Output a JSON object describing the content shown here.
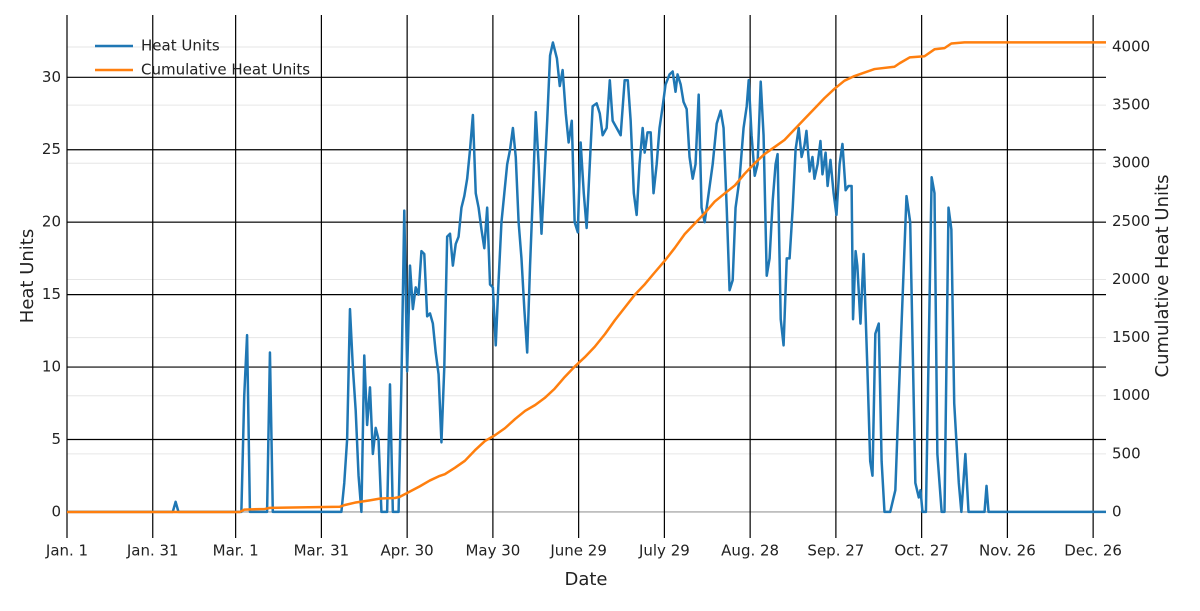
{
  "chart_data": {
    "type": "line",
    "xlabel": "Date",
    "ylabel": "Heat Units",
    "y2label": "Cumulative Heat Units",
    "xlim": [
      1,
      364.5
    ],
    "ylim": [
      -1.8,
      34.3
    ],
    "y2lim": [
      -224,
      4275
    ],
    "xticks": [
      {
        "value": 1,
        "label": "Jan. 1"
      },
      {
        "value": 31,
        "label": "Jan. 31"
      },
      {
        "value": 60,
        "label": "Mar. 1"
      },
      {
        "value": 90,
        "label": "Mar. 31"
      },
      {
        "value": 120,
        "label": "Apr. 30"
      },
      {
        "value": 150,
        "label": "May 30"
      },
      {
        "value": 180,
        "label": "June 29"
      },
      {
        "value": 210,
        "label": "July 29"
      },
      {
        "value": 240,
        "label": "Aug. 28"
      },
      {
        "value": 270,
        "label": "Sep. 27"
      },
      {
        "value": 300,
        "label": "Oct. 27"
      },
      {
        "value": 330,
        "label": "Nov. 26"
      },
      {
        "value": 360,
        "label": "Dec. 26"
      }
    ],
    "yticks": [
      0,
      5,
      10,
      15,
      20,
      25,
      30
    ],
    "y2ticks": [
      0,
      500,
      1000,
      1500,
      2000,
      2500,
      3000,
      3500,
      4000
    ],
    "grid": true,
    "legend": "top-left",
    "series": [
      {
        "name": "Heat Units",
        "color": "#1f77b4",
        "x": [
          1,
          38,
          39,
          40,
          62,
          63,
          64,
          65,
          71,
          72,
          73,
          97,
          98,
          99,
          100,
          101,
          102,
          103,
          104,
          105,
          106,
          107,
          108,
          109,
          110,
          111,
          113,
          114,
          115,
          117,
          118,
          119,
          120,
          121,
          122,
          123,
          124,
          125,
          126,
          127,
          128,
          129,
          130,
          131,
          132,
          133,
          134,
          135,
          136,
          137,
          138,
          139,
          140,
          141,
          142,
          143,
          144,
          145,
          146,
          147,
          148,
          149,
          150,
          151,
          152,
          153,
          154,
          155,
          156,
          157,
          158,
          159,
          160,
          161,
          162,
          163,
          164,
          165,
          166,
          167,
          168,
          169,
          170,
          171,
          172.4,
          173.4,
          174.4,
          175.5,
          176.5,
          177.6,
          178.6,
          179.7,
          180.7,
          181.8,
          182.8,
          183.9,
          184.9,
          186.3,
          187.4,
          188.4,
          189.8,
          190.9,
          191.9,
          193.3,
          194.7,
          196.1,
          197.2,
          198.2,
          199.3,
          200.3,
          201.3,
          202.4,
          203.1,
          204.1,
          205.2,
          206.2,
          207.3,
          208.3,
          209.4,
          210.4,
          211.8,
          212.9,
          213.9,
          214.6,
          215.7,
          216.7,
          217.8,
          218.8,
          219.9,
          220.9,
          222,
          223,
          224.1,
          225.5,
          226.9,
          228.3,
          229.7,
          230.7,
          231.8,
          232.8,
          233.9,
          234.9,
          236.3,
          237.7,
          238.8,
          239.5,
          240.5,
          241.6,
          242.6,
          243.7,
          244.7,
          245.8,
          246.8,
          247.9,
          248.9,
          249.6,
          250.7,
          251.7,
          252.8,
          253.8,
          254.9,
          255.9,
          257,
          258,
          259,
          259.7,
          260.8,
          261.8,
          262.5,
          263.6,
          264.6,
          265.3,
          266.4,
          267.1,
          268.1,
          269.2,
          270.2,
          271.3,
          272.3,
          273.4,
          274.4,
          275.5,
          276,
          276.9,
          277.5,
          278.6,
          279.7,
          281,
          282,
          282.8,
          283.8,
          285,
          286,
          287,
          289,
          290.8,
          292,
          294.7,
          296,
          297,
          297.8,
          299,
          299.6,
          300.3,
          301.5,
          303.5,
          304.5,
          305.5,
          307,
          308,
          309.4,
          310.4,
          311.4,
          313,
          313.9,
          315.3,
          316.4,
          322,
          322.7,
          323.4,
          364.5
        ],
        "values": [
          0,
          0,
          0.7,
          0,
          0,
          8,
          12.2,
          0,
          0,
          11,
          0,
          0,
          2,
          5,
          14,
          10,
          7,
          2.5,
          0,
          10.8,
          6,
          8.6,
          4,
          5.8,
          5,
          0,
          0,
          8.8,
          0,
          0,
          9,
          20.8,
          9.7,
          17,
          14,
          15.5,
          15,
          18,
          17.8,
          13.5,
          13.7,
          13,
          11,
          9.5,
          4.8,
          10,
          19,
          19.2,
          17,
          18.5,
          19,
          21,
          21.8,
          23,
          25,
          27.4,
          22,
          21,
          19.5,
          18.2,
          21,
          15.7,
          15.5,
          11.5,
          16,
          20,
          22,
          24,
          25,
          26.5,
          24.5,
          20,
          17.5,
          14,
          11,
          17,
          22,
          27.6,
          24,
          19.2,
          23,
          27,
          31.5,
          32.4,
          31.3,
          29.4,
          30.5,
          27.5,
          25.5,
          27,
          20,
          19.3,
          25.5,
          22,
          19.6,
          24,
          28,
          28.2,
          27.5,
          26,
          26.5,
          29.8,
          27,
          26.5,
          26,
          29.8,
          29.8,
          27,
          22,
          20.5,
          24,
          26.5,
          24.8,
          26.2,
          26.2,
          22,
          24,
          26.5,
          28,
          29.5,
          30.2,
          30.4,
          29,
          30.2,
          29.5,
          28.3,
          27.8,
          24.5,
          23,
          24,
          28.8,
          21,
          20,
          22,
          24,
          26.8,
          27.7,
          26.5,
          21,
          15.3,
          16,
          21,
          23,
          26.5,
          28,
          29.8,
          26,
          23.2,
          24,
          29.7,
          26,
          16.3,
          17.5,
          21.5,
          24,
          24.7,
          13.3,
          11.5,
          17.5,
          17.5,
          21,
          25,
          26.5,
          24.5,
          25.3,
          26.3,
          23.5,
          24.5,
          23,
          24,
          25.6,
          23.3,
          24.8,
          22.5,
          24.3,
          22,
          20.5,
          24,
          25.4,
          22.2,
          22.5,
          22.5,
          13.3,
          18,
          17,
          13,
          17.8,
          10,
          3.5,
          2.5,
          12.3,
          13,
          3.5,
          0,
          0,
          1.5,
          8,
          21.8,
          20,
          10,
          2,
          1,
          1.5,
          0,
          0,
          23.1,
          22,
          4,
          0,
          0,
          21,
          19.5,
          7.5,
          2,
          0,
          4,
          0,
          0,
          1.8,
          0,
          0
        ]
      },
      {
        "name": "Cumulative Heat Units",
        "color": "#ff7f0e",
        "axis": "y2",
        "x": [
          1,
          61.5,
          63,
          70.2,
          72,
          96.5,
          98.2,
          101.7,
          106.9,
          110.4,
          115.7,
          117.4,
          120.9,
          124.4,
          127.9,
          131.4,
          133.2,
          136.7,
          140.2,
          143.7,
          147.2,
          150.7,
          154.2,
          157.8,
          161.3,
          164.8,
          168.1,
          171.6,
          175.1,
          178.6,
          182.1,
          185.6,
          189.2,
          192.7,
          196.2,
          199.7,
          203.2,
          206.6,
          210.1,
          213.6,
          217.1,
          220.6,
          224.1,
          227.6,
          231.1,
          234.7,
          238.1,
          241.6,
          245.1,
          248.6,
          252,
          255.5,
          259,
          262.5,
          266,
          269.5,
          273,
          276.5,
          280,
          283.5,
          290.5,
          292.3,
          295.8,
          301,
          304.5,
          308,
          310.4,
          315,
          364.5
        ],
        "values": [
          0,
          0,
          20,
          26,
          35,
          45,
          60,
          80,
          100,
          115,
          120,
          130,
          175,
          220,
          270,
          310,
          325,
          380,
          440,
          530,
          610,
          660,
          720,
          800,
          870,
          920,
          980,
          1060,
          1160,
          1250,
          1330,
          1420,
          1530,
          1650,
          1760,
          1870,
          1960,
          2060,
          2160,
          2270,
          2390,
          2480,
          2570,
          2670,
          2740,
          2810,
          2910,
          3000,
          3080,
          3140,
          3200,
          3290,
          3380,
          3470,
          3560,
          3640,
          3710,
          3750,
          3780,
          3810,
          3830,
          3860,
          3910,
          3920,
          3980,
          3990,
          4030,
          4040,
          4040
        ]
      }
    ]
  }
}
